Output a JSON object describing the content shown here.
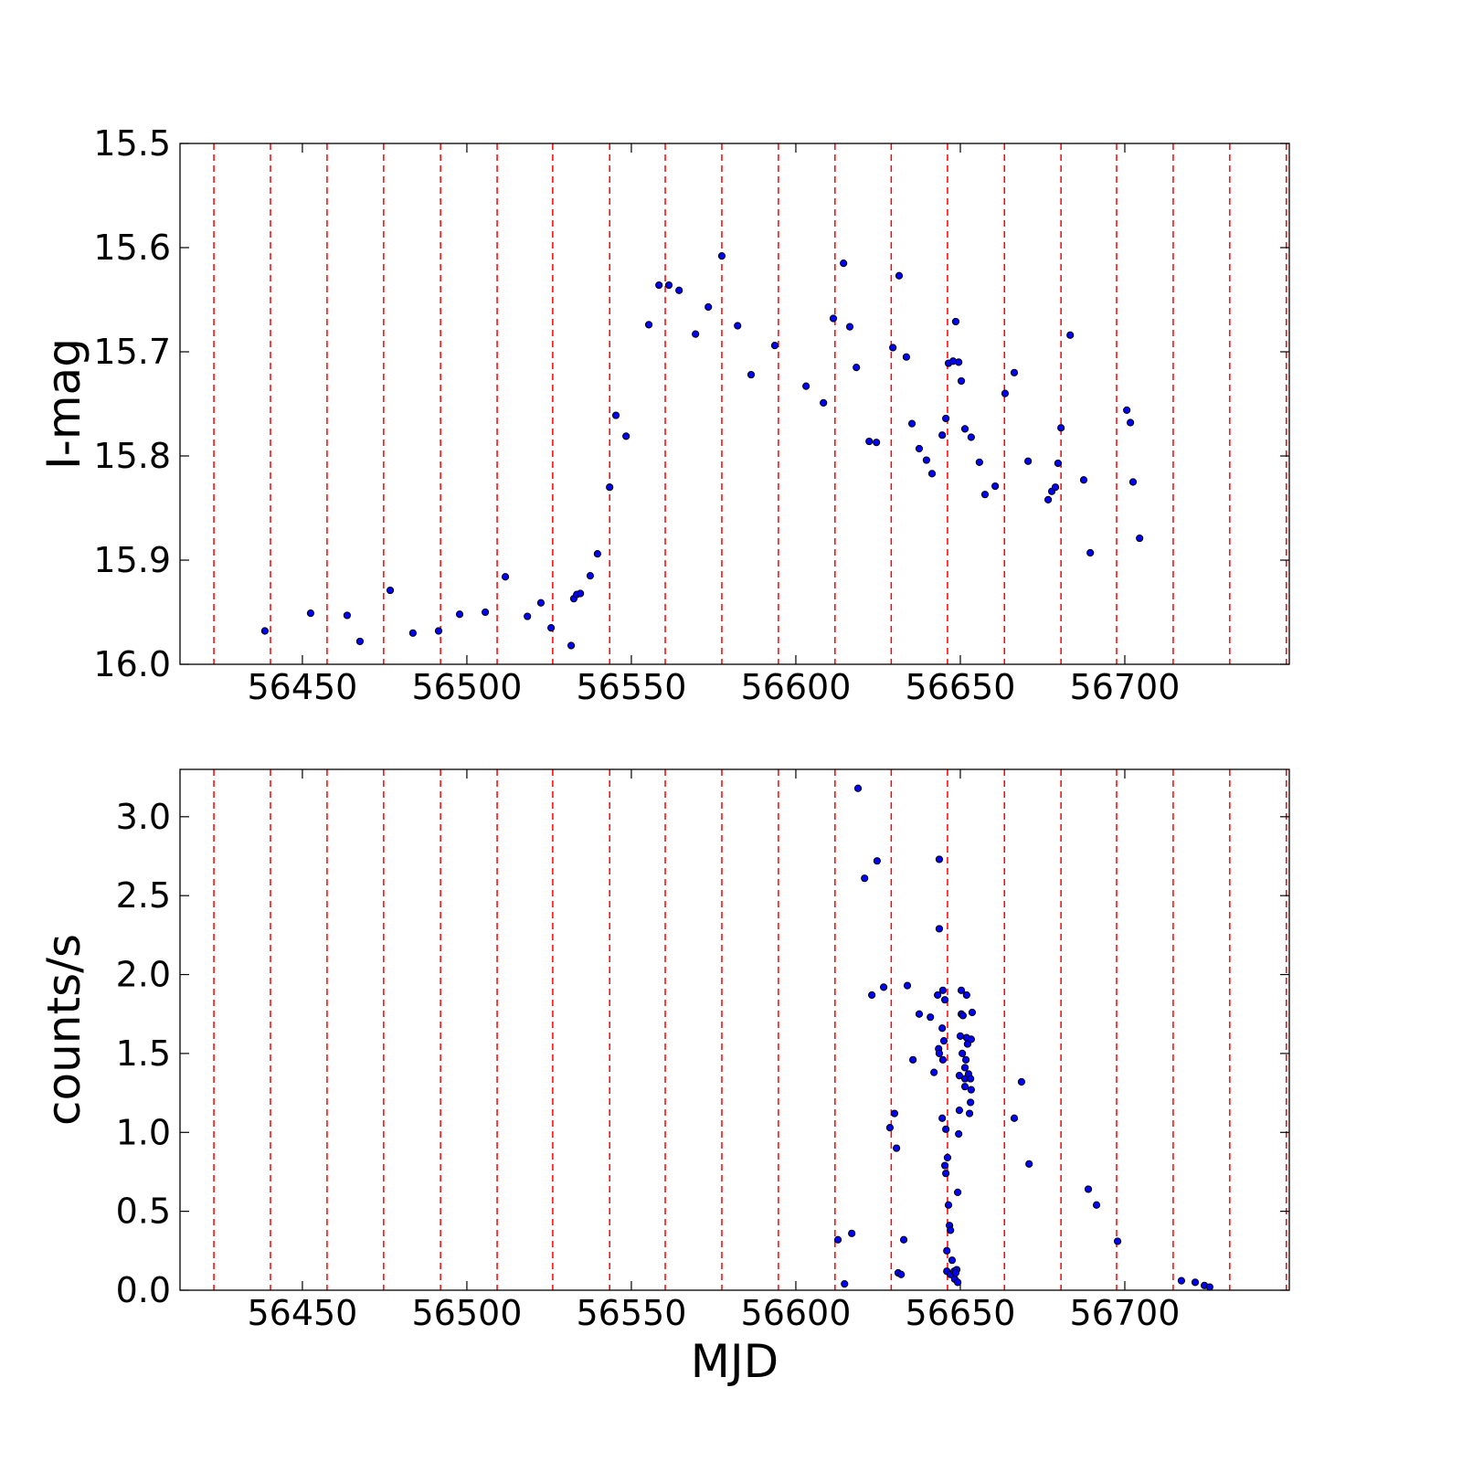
{
  "chart_data": [
    {
      "type": "scatter",
      "ylabel": "I-mag",
      "x": [
        56438.6,
        56452.5,
        56463.6,
        56467.5,
        56476.7,
        56483.6,
        56491.4,
        56497.8,
        56505.6,
        56511.7,
        56518.4,
        56522.5,
        56525.6,
        56531.7,
        56532.5,
        56533.4,
        56534.5,
        56537.5,
        56539.7,
        56543.4,
        56545.3,
        56548.4,
        56555.3,
        56558.4,
        56561.4,
        56564.5,
        56569.5,
        56573.4,
        56577.5,
        56582.3,
        56586.4,
        56593.6,
        56603.1,
        56608.4,
        56611.4,
        56614.5,
        56616.4,
        56618.4,
        56622.3,
        56624.5,
        56629.5,
        56631.4,
        56633.6,
        56635.3,
        56637.5,
        56639.7,
        56641.4,
        56644.5,
        56645.6,
        56646.4,
        56647.8,
        56648.6,
        56649.5,
        56650.3,
        56651.4,
        56653.3,
        56655.8,
        56657.5,
        56660.6,
        56663.6,
        56666.4,
        56670.6,
        56676.7,
        56677.8,
        56678.9,
        56679.7,
        56680.6,
        56683.4,
        56687.5,
        56689.5,
        56700.6,
        56701.7,
        56702.5,
        56704.5
      ],
      "values": [
        15.968,
        15.951,
        15.953,
        15.978,
        15.929,
        15.97,
        15.968,
        15.952,
        15.95,
        15.916,
        15.954,
        15.941,
        15.965,
        15.982,
        15.937,
        15.933,
        15.932,
        15.915,
        15.894,
        15.83,
        15.761,
        15.781,
        15.674,
        15.636,
        15.636,
        15.641,
        15.683,
        15.657,
        15.608,
        15.675,
        15.722,
        15.694,
        15.733,
        15.749,
        15.668,
        15.615,
        15.676,
        15.715,
        15.786,
        15.787,
        15.696,
        15.627,
        15.705,
        15.769,
        15.793,
        15.804,
        15.817,
        15.78,
        15.764,
        15.711,
        15.709,
        15.671,
        15.71,
        15.728,
        15.774,
        15.782,
        15.806,
        15.837,
        15.829,
        15.74,
        15.72,
        15.805,
        15.842,
        15.834,
        15.83,
        15.807,
        15.773,
        15.684,
        15.823,
        15.893,
        15.756,
        15.768,
        15.825,
        15.879
      ],
      "color": "#0000ff",
      "edgecolor": "#000000",
      "vlines": [
        56423.1,
        56440.3,
        56457.5,
        56474.7,
        56492.0,
        56509.2,
        56526.1,
        56543.4,
        56560.3,
        56577.5,
        56594.7,
        56611.9,
        56629.0,
        56646.1,
        56663.4,
        56680.6,
        56697.5,
        56714.7,
        56731.9,
        56749.1
      ],
      "vline_color": "#ff0000",
      "xlim": [
        56412.8,
        56750
      ],
      "xticks": [
        56450,
        56500,
        56550,
        56600,
        56650,
        56700
      ],
      "ylim": [
        16.0,
        15.5
      ],
      "yticks": [
        15.5,
        15.6,
        15.7,
        15.8,
        15.9,
        {
          "value": 16,
          "label": "16.0"
        }
      ]
    },
    {
      "type": "scatter",
      "ylabel": "counts/s",
      "xlabel": "MJD",
      "x": [
        56618.9,
        56620.9,
        56624.7,
        56612.8,
        56617.0,
        56614.8,
        56623.1,
        56626.7,
        56628.6,
        56630.0,
        56630.6,
        56631.1,
        56632.0,
        56632.8,
        56633.9,
        56635.6,
        56637.5,
        56640.9,
        56642.0,
        56643.1,
        56643.6,
        56643.6,
        56643.4,
        56643.6,
        56644.5,
        56644.7,
        56644.7,
        56644.5,
        56645.0,
        56645.3,
        56645.3,
        56645.6,
        56645.6,
        56646.1,
        56645.9,
        56646.4,
        56646.7,
        56647.0,
        56645.9,
        56647.0,
        56647.5,
        56648.1,
        56648.3,
        56648.9,
        56649.2,
        56648.6,
        56649.2,
        56649.5,
        56649.7,
        56649.7,
        56650.3,
        56650.3,
        56650.0,
        56650.6,
        56650.8,
        56651.4,
        56651.4,
        56651.4,
        56651.9,
        56651.9,
        56651.7,
        56652.2,
        56652.5,
        56652.8,
        56653.1,
        56653.1,
        56653.3,
        56653.3,
        56653.6,
        56666.4,
        56668.6,
        56670.9,
        56688.9,
        56691.4,
        56697.8,
        56717.2,
        56721.4,
        56724.2,
        56725.8
      ],
      "values": [
        3.18,
        2.61,
        2.72,
        0.32,
        0.36,
        0.04,
        1.87,
        1.92,
        1.03,
        1.12,
        0.9,
        0.11,
        0.1,
        0.32,
        1.93,
        1.46,
        1.75,
        1.73,
        1.38,
        1.87,
        2.73,
        2.29,
        1.53,
        1.5,
        1.66,
        1.9,
        1.46,
        1.09,
        1.58,
        1.84,
        0.79,
        1.02,
        0.74,
        0.84,
        0.25,
        0.54,
        0.41,
        0.38,
        0.12,
        0.1,
        0.19,
        0.12,
        0.07,
        0.13,
        0.05,
        0.11,
        0.62,
        0.99,
        1.14,
        1.36,
        1.75,
        1.9,
        1.61,
        1.5,
        1.74,
        1.34,
        1.41,
        1.29,
        1.87,
        1.6,
        1.46,
        1.56,
        1.37,
        1.12,
        1.34,
        1.19,
        1.27,
        1.59,
        1.76,
        1.09,
        1.32,
        0.8,
        0.64,
        0.54,
        0.31,
        0.06,
        0.05,
        0.03,
        0.02
      ],
      "color": "#0000ff",
      "edgecolor": "#000000",
      "vlines": [
        56423.1,
        56440.3,
        56457.5,
        56474.7,
        56492.0,
        56509.2,
        56526.1,
        56543.4,
        56560.3,
        56577.5,
        56594.7,
        56611.9,
        56629.0,
        56646.1,
        56663.4,
        56680.6,
        56697.5,
        56714.7,
        56731.9,
        56749.1
      ],
      "vline_color": "#ff0000",
      "xlim": [
        56412.8,
        56750
      ],
      "xticks": [
        56450,
        56500,
        56550,
        56600,
        56650,
        56700
      ],
      "ylim": [
        0,
        3.3
      ],
      "yticks": [
        {
          "value": 0,
          "label": "0.0"
        },
        0.5,
        {
          "value": 1,
          "label": "1.0"
        },
        1.5,
        {
          "value": 2,
          "label": "2.0"
        },
        2.5,
        {
          "value": 3,
          "label": "3.0"
        }
      ]
    }
  ]
}
